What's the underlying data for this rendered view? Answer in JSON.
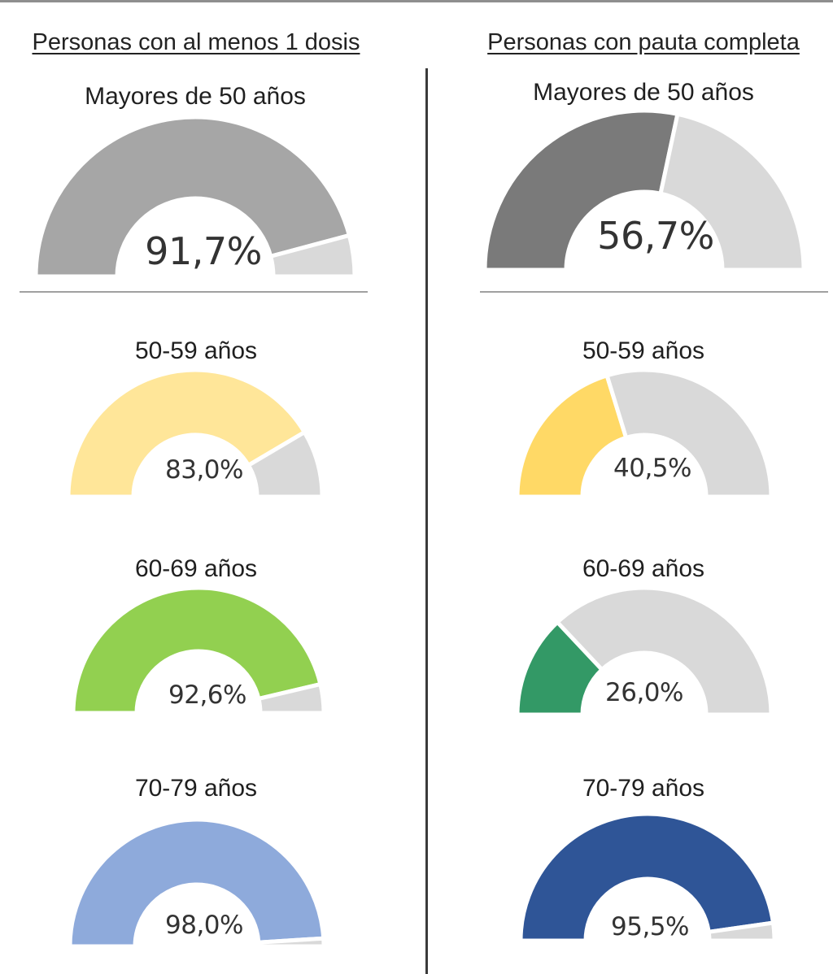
{
  "columns": [
    {
      "title": "Personas con al menos 1 dosis"
    },
    {
      "title": "Personas con pauta completa"
    }
  ],
  "colors": {
    "remainder": "#d9d9d9",
    "separator": "#ffffff"
  },
  "chart_data": [
    {
      "type": "gauge",
      "column": "Personas con al menos 1 dosis",
      "title": "Mayores de 50 años",
      "value": 91.7,
      "max": 100,
      "label": "91,7%",
      "color": "#a6a6a6"
    },
    {
      "type": "gauge",
      "column": "Personas con al menos 1 dosis",
      "title": "50-59 años",
      "value": 83.0,
      "max": 100,
      "label": "83,0%",
      "color": "#ffe699"
    },
    {
      "type": "gauge",
      "column": "Personas con al menos 1 dosis",
      "title": "60-69 años",
      "value": 92.6,
      "max": 100,
      "label": "92,6%",
      "color": "#92d050"
    },
    {
      "type": "gauge",
      "column": "Personas con al menos 1 dosis",
      "title": "70-79 años",
      "value": 98.0,
      "max": 100,
      "label": "98,0%",
      "color": "#8eaadb"
    },
    {
      "type": "gauge",
      "column": "Personas con pauta completa",
      "title": "Mayores de 50 años",
      "value": 56.7,
      "max": 100,
      "label": "56,7%",
      "color": "#7a7a7a"
    },
    {
      "type": "gauge",
      "column": "Personas con pauta completa",
      "title": "50-59 años",
      "value": 40.5,
      "max": 100,
      "label": "40,5%",
      "color": "#ffd966"
    },
    {
      "type": "gauge",
      "column": "Personas con pauta completa",
      "title": "60-69 años",
      "value": 26.0,
      "max": 100,
      "label": "26,0%",
      "color": "#339966"
    },
    {
      "type": "gauge",
      "column": "Personas con pauta completa",
      "title": "70-79 años",
      "value": 95.5,
      "max": 100,
      "label": "95,5%",
      "color": "#2f5597"
    }
  ]
}
